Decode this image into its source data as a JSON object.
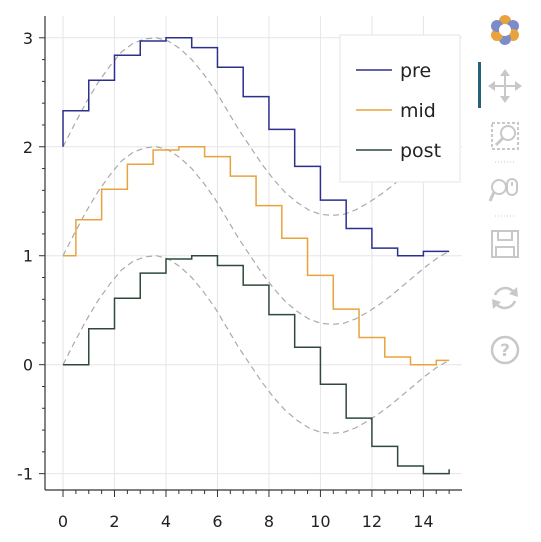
{
  "chart_data": {
    "type": "line",
    "title": "",
    "xlabel": "",
    "ylabel": "",
    "xlim": [
      -0.7,
      15.5
    ],
    "ylim": [
      -1.15,
      3.2
    ],
    "grid": true,
    "legend_position": "top-right",
    "x_ticks": [
      0,
      2,
      4,
      6,
      8,
      10,
      12,
      14
    ],
    "x_tick_labels": [
      "0",
      "2",
      "4",
      "6",
      "8",
      "10",
      "12",
      "14"
    ],
    "y_ticks": [
      -1,
      0,
      1,
      2,
      3
    ],
    "y_tick_labels": [
      "-1",
      "0",
      "1",
      "2",
      "3"
    ],
    "x": [
      0,
      1,
      2,
      3,
      4,
      5,
      6,
      7,
      8,
      9,
      10,
      11,
      12,
      13,
      14,
      15
    ],
    "reference_curve": {
      "style": "dashed",
      "color": "#aaaaaa",
      "values": [
        0,
        0.21,
        0.41,
        0.59,
        0.74,
        0.87,
        0.95,
        0.99,
        1.0,
        0.97,
        0.9,
        0.8,
        0.67,
        0.52,
        0.34,
        0.16,
        0.0,
        -0.16,
        -0.3,
        -0.42,
        -0.51,
        -0.58,
        -0.62,
        -0.63,
        -0.62,
        -0.58,
        -0.52,
        -0.45,
        -0.37,
        -0.28,
        -0.19,
        -0.1,
        -0.02,
        0.04
      ]
    },
    "series": [
      {
        "name": "pre",
        "mode": "before",
        "color": "#2b2f8f",
        "offset": 2,
        "values": [
          0,
          0.33,
          0.61,
          0.84,
          0.97,
          1.0,
          0.91,
          0.73,
          0.46,
          0.16,
          -0.18,
          -0.49,
          -0.75,
          -0.93,
          -1.0,
          -0.96
        ]
      },
      {
        "name": "mid",
        "mode": "center",
        "color": "#e8a33c",
        "offset": 1,
        "values": [
          0,
          0.33,
          0.61,
          0.84,
          0.97,
          1.0,
          0.91,
          0.73,
          0.46,
          0.16,
          -0.18,
          -0.49,
          -0.75,
          -0.93,
          -1.0,
          -0.96
        ]
      },
      {
        "name": "post",
        "mode": "after",
        "color": "#2f4a3a",
        "offset": 0,
        "values": [
          0,
          0.33,
          0.61,
          0.84,
          0.97,
          1.0,
          0.91,
          0.73,
          0.46,
          0.16,
          -0.18,
          -0.49,
          -0.75,
          -0.93,
          -1.0,
          -0.96
        ]
      }
    ]
  },
  "legend": {
    "items": [
      {
        "label": "pre",
        "color": "#2b2f8f"
      },
      {
        "label": "mid",
        "color": "#e8a33c"
      },
      {
        "label": "post",
        "color": "#2f4a3a"
      }
    ]
  },
  "toolbar": {
    "logo": "bokeh-logo-icon",
    "tools": [
      {
        "icon": "pan-icon",
        "active": true
      },
      {
        "icon": "box-zoom-icon",
        "active": false
      },
      {
        "icon": "wheel-zoom-icon",
        "active": false
      },
      {
        "icon": "save-icon",
        "active": false
      },
      {
        "icon": "reset-icon",
        "active": false
      },
      {
        "icon": "help-icon",
        "active": false
      }
    ]
  },
  "colors": {
    "grid": "#e6e6e6",
    "axis": "#333333",
    "tool_icon": "#cccccc",
    "active_tool_marker": "#26607a"
  }
}
